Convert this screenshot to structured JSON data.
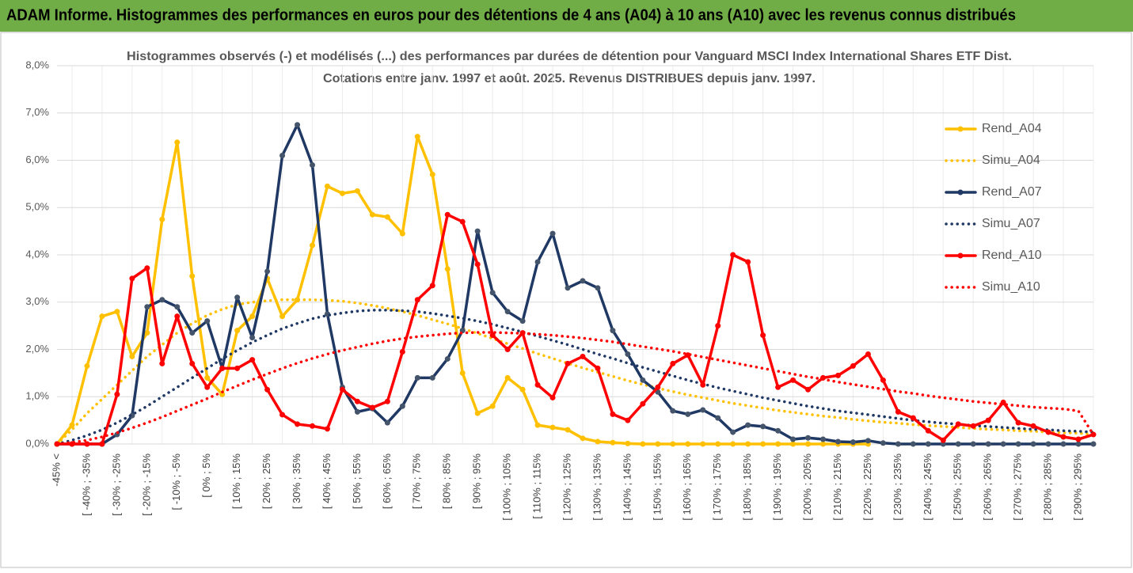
{
  "header": {
    "title": "ADAM Informe. Histogrammes des performances en euros pour des détentions de 4 ans (A04) à 10 ans (A10) avec les revenus connus distribués"
  },
  "chart_data": {
    "type": "line",
    "title": "Histogrammes observés (-) et modélisés (...) des performances par durées de détention pour Vanguard MSCI Index International Shares ETF Dist.",
    "subtitle": "Cotations entre janv. 1997 et août. 2025. Revenus DISTRIBUES depuis janv. 1997.",
    "categories": [
      "-45% <",
      null,
      "[ -40% ; -35%",
      null,
      "[ -30% ; -25%",
      null,
      "[ -20% ; -15%",
      null,
      "[ -10% ; -5%",
      null,
      "[ 0% ; 5%",
      null,
      "[ 10% ; 15%",
      null,
      "[ 20% ; 25%",
      null,
      "[ 30% ; 35%",
      null,
      "[ 40% ; 45%",
      null,
      "[ 50% ; 55%",
      null,
      "[ 60% ; 65%",
      null,
      "[ 70% ; 75%",
      null,
      "[ 80% ; 85%",
      null,
      "[ 90% ; 95%",
      null,
      "[ 100% ; 105%",
      null,
      "[ 110% ; 115%",
      null,
      "[ 120% ; 125%",
      null,
      "[ 130% ; 135%",
      null,
      "[ 140% ; 145%",
      null,
      "[ 150% ; 155%",
      null,
      "[ 160% ; 165%",
      null,
      "[ 170% ; 175%",
      null,
      "[ 180% ; 185%",
      null,
      "[ 190% ; 195%",
      null,
      "[ 200% ; 205%",
      null,
      "[ 210% ; 215%",
      null,
      "[ 220% ; 225%",
      null,
      "[ 230% ; 235%",
      null,
      "[ 240% ; 245%",
      null,
      "[ 250% ; 255%",
      null,
      "[ 260% ; 265%",
      null,
      "[ 270% ; 275%",
      null,
      "[ 280% ; 285%",
      null,
      "[ 290% ; 295%",
      null
    ],
    "series": [
      {
        "name": "Rend_A04",
        "color": "#ffc000",
        "line_style": "solid",
        "markers": true,
        "values": [
          0,
          0.4,
          1.65,
          2.7,
          2.8,
          1.85,
          2.35,
          4.75,
          6.38,
          3.55,
          1.4,
          1.05,
          2.4,
          2.7,
          3.5,
          2.7,
          3.05,
          4.2,
          5.45,
          5.3,
          5.35,
          4.85,
          4.8,
          4.45,
          6.5,
          5.7,
          3.7,
          1.5,
          0.65,
          0.8,
          1.4,
          1.15,
          0.4,
          0.35,
          0.3,
          0.12,
          0.05,
          0.03,
          0.01,
          0,
          0,
          0,
          0,
          0,
          0,
          0,
          0,
          0,
          0,
          0,
          0,
          0,
          0,
          0,
          0,
          null,
          null,
          null,
          null,
          null,
          null,
          null,
          null,
          null,
          null,
          null,
          null,
          null,
          null,
          null
        ]
      },
      {
        "name": "Simu_A04",
        "color": "#ffc000",
        "line_style": "dotted",
        "markers": false,
        "values": [
          0,
          0.3,
          0.65,
          0.95,
          1.25,
          1.55,
          1.85,
          2.1,
          2.35,
          2.55,
          2.72,
          2.85,
          2.95,
          3.0,
          3.03,
          3.05,
          3.05,
          3.05,
          3.04,
          3.02,
          2.98,
          2.93,
          2.87,
          2.8,
          2.72,
          2.63,
          2.54,
          2.44,
          2.34,
          2.23,
          2.12,
          2.02,
          1.91,
          1.81,
          1.71,
          1.61,
          1.52,
          1.43,
          1.34,
          1.26,
          1.18,
          1.11,
          1.04,
          0.98,
          0.92,
          0.86,
          0.81,
          0.76,
          0.71,
          0.67,
          0.63,
          0.59,
          0.56,
          0.52,
          0.49,
          0.46,
          0.44,
          0.41,
          0.39,
          0.37,
          0.35,
          0.33,
          0.31,
          0.3,
          0.28,
          0.27,
          0.25,
          0.24,
          0.23,
          0.2
        ]
      },
      {
        "name": "Rend_A07",
        "color": "#1f3864",
        "line_style": "solid",
        "markers": true,
        "values": [
          0,
          0,
          0,
          0,
          0.2,
          0.6,
          2.9,
          3.05,
          2.9,
          2.35,
          2.6,
          1.6,
          3.1,
          2.25,
          3.65,
          6.1,
          6.75,
          5.9,
          2.75,
          1.2,
          0.68,
          0.75,
          0.45,
          0.8,
          1.4,
          1.4,
          1.8,
          2.4,
          4.5,
          3.2,
          2.8,
          2.6,
          3.85,
          4.45,
          3.3,
          3.45,
          3.3,
          2.4,
          1.9,
          1.35,
          1.1,
          0.7,
          0.63,
          0.72,
          0.55,
          0.25,
          0.4,
          0.37,
          0.28,
          0.1,
          0.13,
          0.1,
          0.05,
          0.04,
          0.07,
          0.02,
          0,
          0,
          0,
          0,
          0,
          0,
          0,
          0,
          0,
          0,
          0,
          0,
          0,
          0
        ]
      },
      {
        "name": "Simu_A07",
        "color": "#1f3864",
        "line_style": "dotted",
        "markers": false,
        "values": [
          0,
          0.08,
          0.18,
          0.3,
          0.45,
          0.62,
          0.8,
          1.0,
          1.2,
          1.4,
          1.6,
          1.8,
          1.98,
          2.15,
          2.3,
          2.44,
          2.55,
          2.65,
          2.72,
          2.77,
          2.81,
          2.83,
          2.83,
          2.82,
          2.8,
          2.76,
          2.71,
          2.66,
          2.6,
          2.53,
          2.45,
          2.37,
          2.28,
          2.19,
          2.1,
          2.0,
          1.9,
          1.81,
          1.71,
          1.62,
          1.53,
          1.44,
          1.35,
          1.27,
          1.19,
          1.12,
          1.05,
          0.98,
          0.92,
          0.86,
          0.8,
          0.75,
          0.7,
          0.66,
          0.62,
          0.58,
          0.54,
          0.5,
          0.47,
          0.44,
          0.42,
          0.39,
          0.37,
          0.35,
          0.33,
          0.31,
          0.3,
          0.28,
          0.27,
          0.25
        ]
      },
      {
        "name": "Rend_A10",
        "color": "#ff0000",
        "line_style": "solid",
        "markers": true,
        "values": [
          0,
          0,
          0,
          0,
          1.05,
          3.5,
          3.72,
          1.7,
          2.7,
          1.7,
          1.2,
          1.6,
          1.6,
          1.78,
          1.15,
          0.62,
          0.42,
          0.38,
          0.32,
          1.15,
          0.9,
          0.77,
          0.9,
          1.95,
          3.05,
          3.35,
          4.85,
          4.7,
          3.8,
          2.3,
          2.0,
          2.35,
          1.25,
          0.98,
          1.7,
          1.85,
          1.6,
          0.63,
          0.5,
          0.85,
          1.2,
          1.7,
          1.88,
          1.25,
          2.5,
          4.0,
          3.85,
          2.3,
          1.2,
          1.35,
          1.15,
          1.4,
          1.45,
          1.65,
          1.9,
          1.35,
          0.68,
          0.55,
          0.28,
          0.08,
          0.42,
          0.38,
          0.5,
          0.88,
          0.45,
          0.38,
          0.25,
          0.15,
          0.1,
          0.2
        ]
      },
      {
        "name": "Simu_A10",
        "color": "#ff0000",
        "line_style": "dotted",
        "markers": false,
        "values": [
          0,
          0.03,
          0.08,
          0.15,
          0.24,
          0.34,
          0.45,
          0.57,
          0.7,
          0.83,
          0.96,
          1.1,
          1.23,
          1.36,
          1.48,
          1.6,
          1.71,
          1.81,
          1.9,
          1.98,
          2.05,
          2.12,
          2.18,
          2.23,
          2.27,
          2.3,
          2.33,
          2.35,
          2.36,
          2.36,
          2.35,
          2.34,
          2.32,
          2.3,
          2.27,
          2.24,
          2.2,
          2.16,
          2.11,
          2.06,
          2.01,
          1.96,
          1.9,
          1.84,
          1.78,
          1.72,
          1.66,
          1.6,
          1.54,
          1.48,
          1.42,
          1.37,
          1.31,
          1.26,
          1.21,
          1.16,
          1.11,
          1.07,
          1.02,
          0.98,
          0.94,
          0.9,
          0.87,
          0.84,
          0.81,
          0.78,
          0.76,
          0.74,
          0.7,
          0.2
        ]
      }
    ],
    "ylim": [
      0,
      8
    ],
    "yticks": [
      {
        "value": 0,
        "label": "0,0%"
      },
      {
        "value": 1,
        "label": "1,0%"
      },
      {
        "value": 2,
        "label": "2,0%"
      },
      {
        "value": 3,
        "label": "3,0%"
      },
      {
        "value": 4,
        "label": "4,0%"
      },
      {
        "value": 5,
        "label": "5,0%"
      },
      {
        "value": 6,
        "label": "6,0%"
      },
      {
        "value": 7,
        "label": "7,0%"
      },
      {
        "value": 8,
        "label": "8,0%"
      }
    ],
    "grid": true,
    "legend": "right"
  }
}
